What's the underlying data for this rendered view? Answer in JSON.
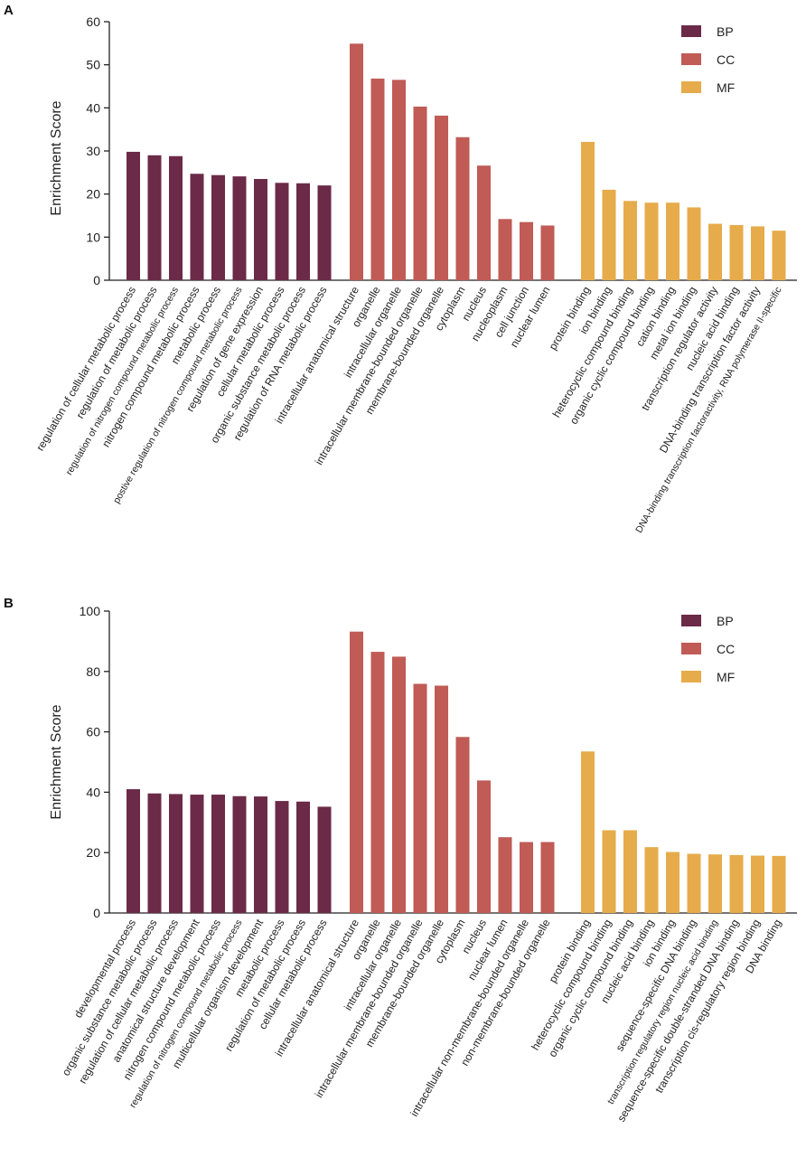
{
  "colors": {
    "BP": "#6b2a48",
    "CC": "#c05b55",
    "MF": "#e6ab4a"
  },
  "chart_data": [
    {
      "panel": "A",
      "type": "bar",
      "ylabel": "Enrichment Score",
      "ylim": [
        0,
        60
      ],
      "yticks": [
        0,
        10,
        20,
        30,
        40,
        50,
        60
      ],
      "legend": {
        "position": "top-right",
        "entries": [
          "BP",
          "CC",
          "MF"
        ]
      },
      "series": [
        {
          "name": "BP",
          "categories": [
            "regulation of cellular metabolic process",
            "regulation of metabolic process",
            "regulation of nitrogen compound metabolic process",
            "nitrogen compound metabolic process",
            "metabolic process",
            "postive regulation of nitrogen compound metabolic process",
            "regulation of gene expression",
            "cellular metabolic process",
            "organic substance metabolic process",
            "regulation of RNA metabolic process"
          ],
          "values": [
            29.8,
            29.0,
            28.8,
            24.7,
            24.4,
            24.1,
            23.5,
            22.6,
            22.5,
            22.0
          ]
        },
        {
          "name": "CC",
          "categories": [
            "intracellular anatomical structure",
            "organelle",
            "intracellular organelle",
            "intracellular membrane-bounded organelle",
            "membrane-bounded organelle",
            "cytoplasm",
            "nucleus",
            "nucleoplasm",
            "cell junction",
            "nuclear lumen"
          ],
          "values": [
            54.9,
            46.8,
            46.5,
            40.3,
            38.2,
            33.2,
            26.6,
            14.2,
            13.5,
            12.7
          ]
        },
        {
          "name": "MF",
          "categories": [
            "protein binding",
            "ion binding",
            "heterocyclic compound binding",
            "organic cyclic compound binding",
            "cation binding",
            "metal ion binding",
            "transcription regulator activity",
            "nucleic acid binding",
            "DNA-binding transcription factor activity",
            "DNA-binding transcription factoractivity, RNA polymerase II-specific"
          ],
          "values": [
            32.1,
            21.0,
            18.4,
            18.0,
            18.0,
            16.9,
            13.1,
            12.8,
            12.5,
            11.5
          ]
        }
      ]
    },
    {
      "panel": "B",
      "type": "bar",
      "ylabel": "Enrichment Score",
      "ylim": [
        0,
        100
      ],
      "yticks": [
        0,
        20,
        40,
        60,
        80,
        100
      ],
      "legend": {
        "position": "top-right",
        "entries": [
          "BP",
          "CC",
          "MF"
        ]
      },
      "series": [
        {
          "name": "BP",
          "categories": [
            "developmental process",
            "organic substance metabolic process",
            "regulation of cellular metabolic process",
            "anatomical structure development",
            "nitrogen compound metabolic process",
            "regulation of nitrogen compound metabolic process",
            "multicellular organism development",
            "metabolic process",
            "regulation of metabolic process",
            "cellular metabolic process"
          ],
          "values": [
            41.0,
            39.6,
            39.4,
            39.2,
            39.2,
            38.7,
            38.6,
            37.1,
            36.9,
            35.2
          ]
        },
        {
          "name": "CC",
          "categories": [
            "intracellular anatomical structure",
            "organelle",
            "intracellular organelle",
            "intracellular membrane-bounded organelle",
            "membrane-bounded organelle",
            "cytoplasm",
            "nucleus",
            "nuclear lumen",
            "intracellular non-membrane-bounded organelle",
            "non-membrane-bounded organelle"
          ],
          "values": [
            93.2,
            86.5,
            84.9,
            75.9,
            75.3,
            58.3,
            43.9,
            25.1,
            23.5,
            23.5
          ]
        },
        {
          "name": "MF",
          "categories": [
            "protein binding",
            "heterocyclic compound binding",
            "organic cyclic compound binding",
            "nucleic acid binding",
            "ion binding",
            "sequence-specific DNA binding",
            "transcription regulatory region nucleic acid binding",
            "sequence-specific double-stranded DNA binding",
            "transcription cis-regulatory region binding",
            "DNA binding"
          ],
          "values": [
            53.5,
            27.4,
            27.4,
            21.8,
            20.2,
            19.6,
            19.4,
            19.2,
            19.0,
            18.9
          ]
        }
      ]
    }
  ]
}
